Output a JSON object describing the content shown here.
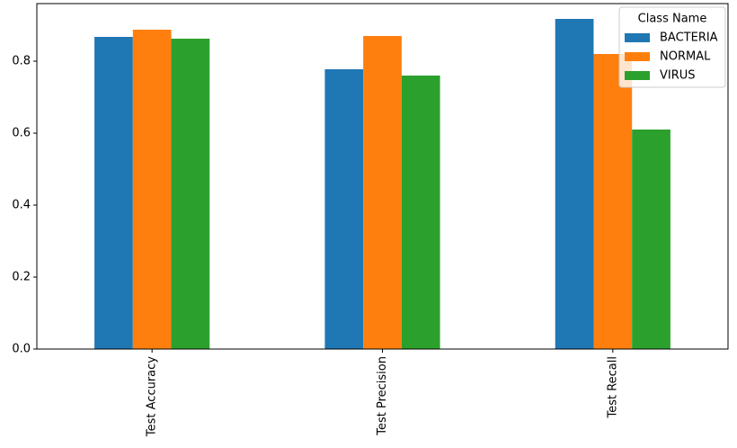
{
  "chart_data": {
    "type": "bar",
    "categories": [
      "Test Accuracy",
      "Test Precision",
      "Test Recall"
    ],
    "series": [
      {
        "name": "BACTERIA",
        "color": "#1f77b4",
        "values": [
          0.8675,
          0.7775,
          0.9175
        ]
      },
      {
        "name": "NORMAL",
        "color": "#ff7f0e",
        "values": [
          0.8875,
          0.87,
          0.82
        ]
      },
      {
        "name": "VIRUS",
        "color": "#2ca02c",
        "values": [
          0.8625,
          0.76,
          0.61
        ]
      }
    ],
    "legend_title": "Class Name",
    "legend_position": "upper-right",
    "ylim": [
      0,
      0.96
    ],
    "yticks": [
      {
        "value": 0,
        "label": "0.0"
      },
      0.2,
      0.4,
      0.6,
      0.8
    ],
    "grid": false
  }
}
